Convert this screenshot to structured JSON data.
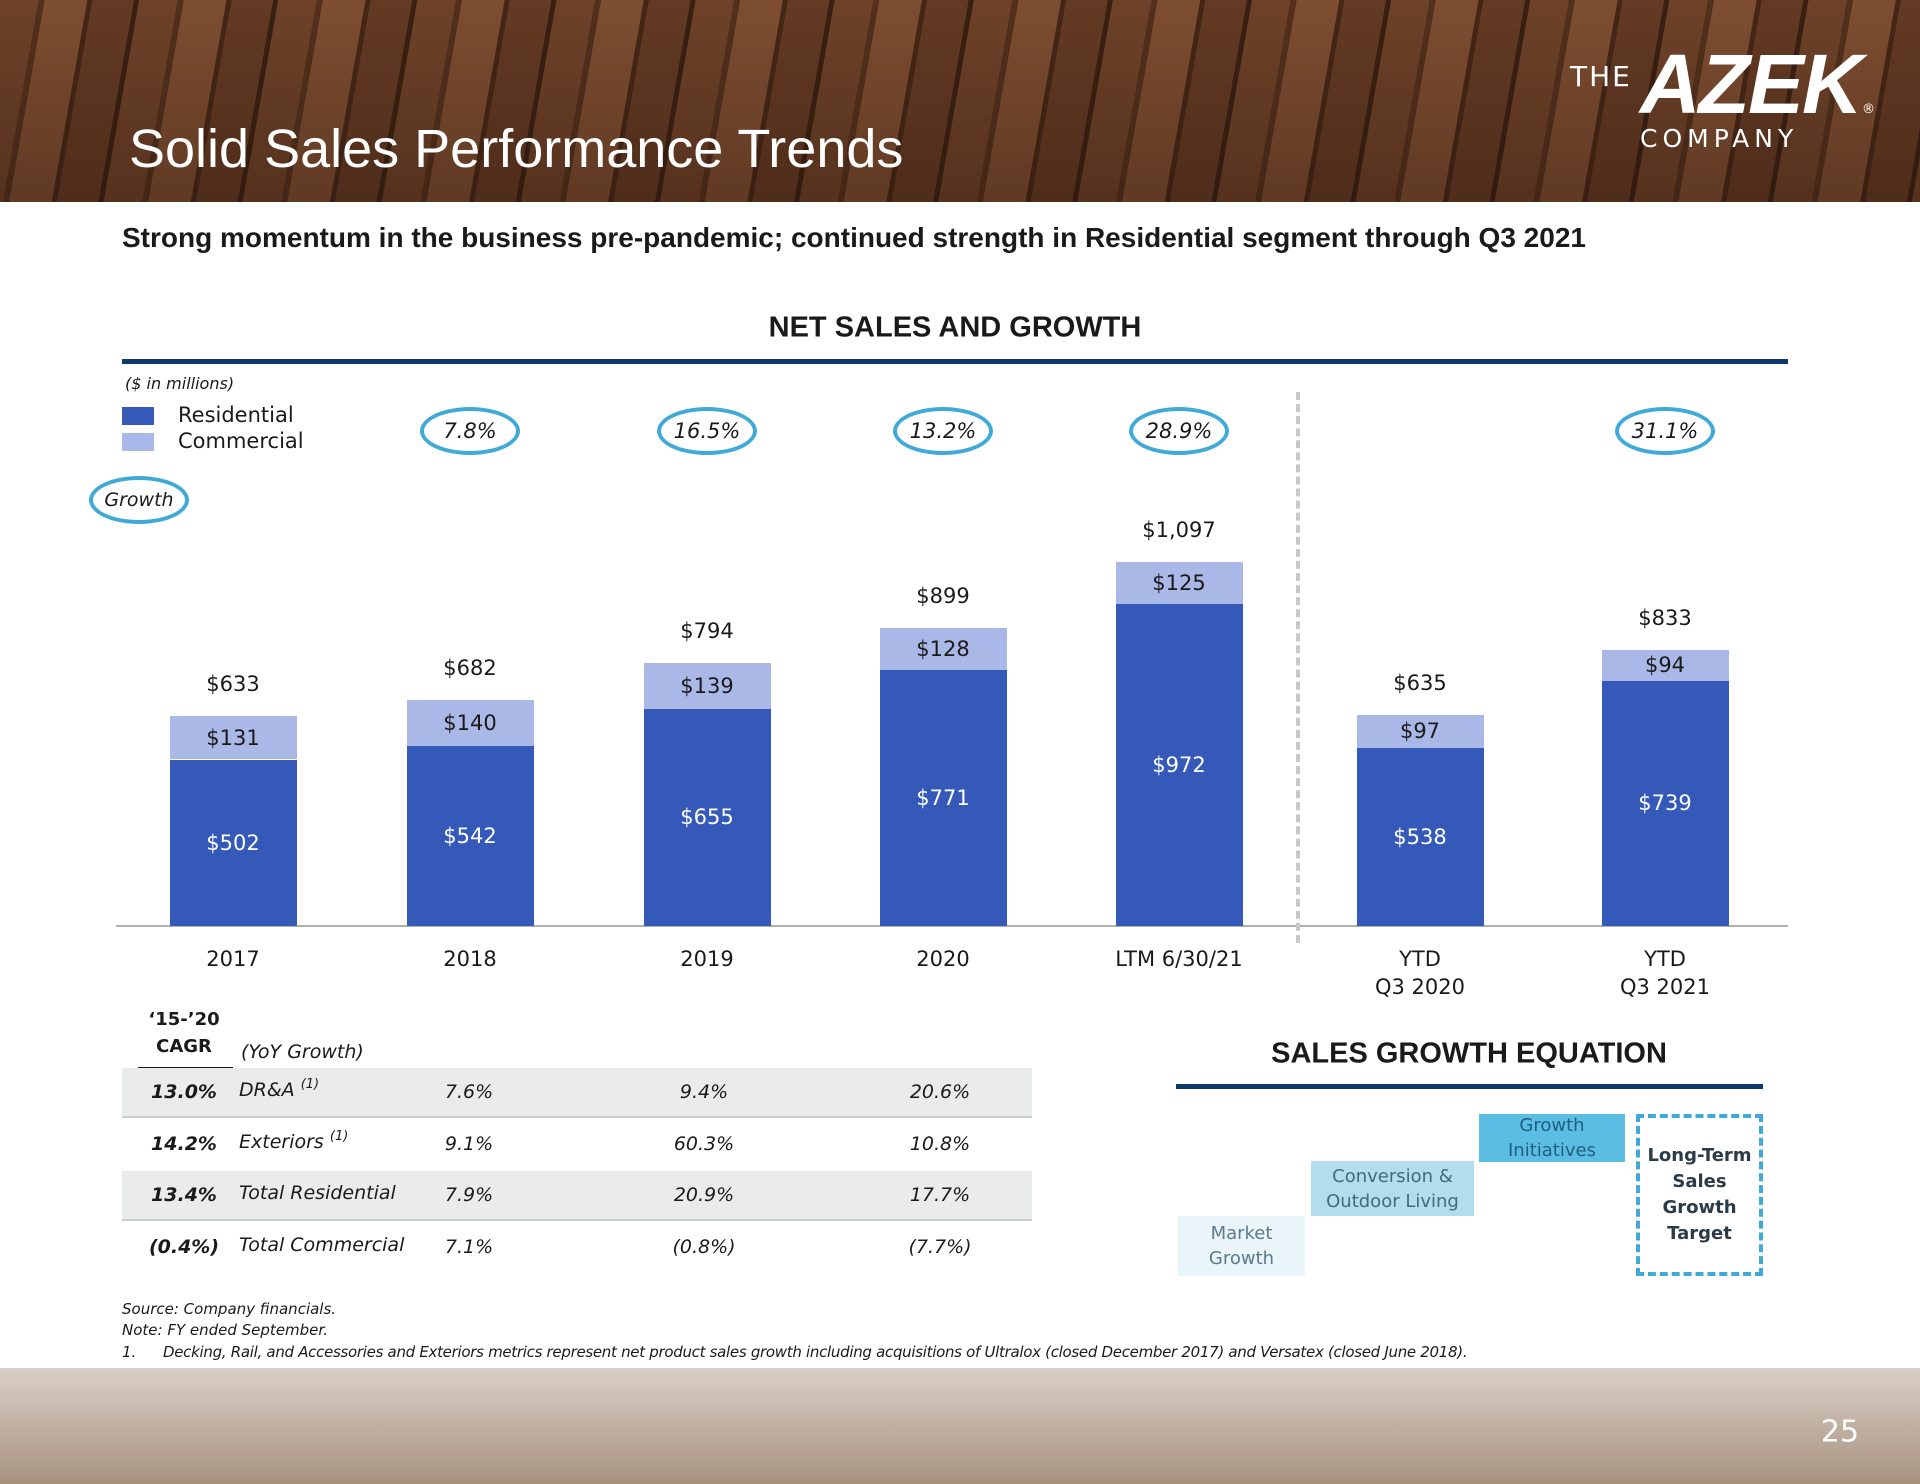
{
  "header": {
    "title": "Solid Sales Performance Trends",
    "logo": {
      "the": "THE",
      "name": "AZEK",
      "mark": "®",
      "company": "COMPANY"
    }
  },
  "subtitle": "Strong momentum in the business pre-pandemic; continued strength in Residential segment through Q3 2021",
  "chart_data": {
    "type": "bar",
    "stacked": true,
    "title": "NET SALES AND GROWTH",
    "unit_note": "($ in millions)",
    "categories": [
      "2017",
      "2018",
      "2019",
      "2020",
      "LTM 6/30/21",
      "YTD\nQ3 2020",
      "YTD\nQ3 2021"
    ],
    "series": [
      {
        "name": "Residential",
        "color": "#3459b8",
        "values": [
          502,
          542,
          655,
          771,
          972,
          538,
          739
        ],
        "value_labels": [
          "$502",
          "$542",
          "$655",
          "$771",
          "$972",
          "$538",
          "$739"
        ]
      },
      {
        "name": "Commercial",
        "color": "#aab8e8",
        "values": [
          131,
          140,
          139,
          128,
          125,
          97,
          94
        ],
        "value_labels": [
          "$131",
          "$140",
          "$139",
          "$128",
          "$125",
          "$97",
          "$94"
        ]
      }
    ],
    "total_labels": [
      "$633",
      "$682",
      "$794",
      "$899",
      "$1,097",
      "$635",
      "$833"
    ],
    "growth_legend": "Growth",
    "growth": [
      null,
      7.8,
      16.5,
      13.2,
      28.9,
      null,
      31.1
    ],
    "growth_labels": [
      null,
      "7.8%",
      "16.5%",
      "13.2%",
      "28.9%",
      null,
      "31.1%"
    ],
    "ylim": [
      0,
      1200
    ],
    "separator_after": 4
  },
  "table": {
    "cagr_header": "‘15-’20\nCAGR",
    "growth_header": "(YoY Growth)",
    "rows": [
      {
        "cagr": "13.0%",
        "label": "DR&A",
        "note": "(1)",
        "values": [
          "7.6%",
          "9.4%",
          "20.6%"
        ]
      },
      {
        "cagr": "14.2%",
        "label": "Exteriors",
        "note": "(1)",
        "values": [
          "9.1%",
          "60.3%",
          "10.8%"
        ]
      },
      {
        "cagr": "13.4%",
        "label": "Total Residential",
        "values": [
          "7.9%",
          "20.9%",
          "17.7%"
        ]
      },
      {
        "cagr": "(0.4%)",
        "label": "Total Commercial",
        "values": [
          "7.1%",
          "(0.8%)",
          "(7.7%)"
        ]
      }
    ]
  },
  "equation": {
    "title": "SALES GROWTH EQUATION",
    "steps": [
      "Market\nGrowth",
      "Conversion &\nOutdoor Living",
      "Growth\nInitiatives"
    ],
    "target": "Long-Term\nSales\nGrowth\nTarget"
  },
  "footnotes": {
    "source": "Source: Company financials.",
    "note": "Note: FY ended September.",
    "items": [
      {
        "number": "1.",
        "text": "Decking, Rail, and Accessories and Exteriors metrics represent net product sales growth including acquisitions of Ultralox (closed December 2017) and Versatex (closed June 2018)."
      }
    ]
  },
  "page_number": "25"
}
